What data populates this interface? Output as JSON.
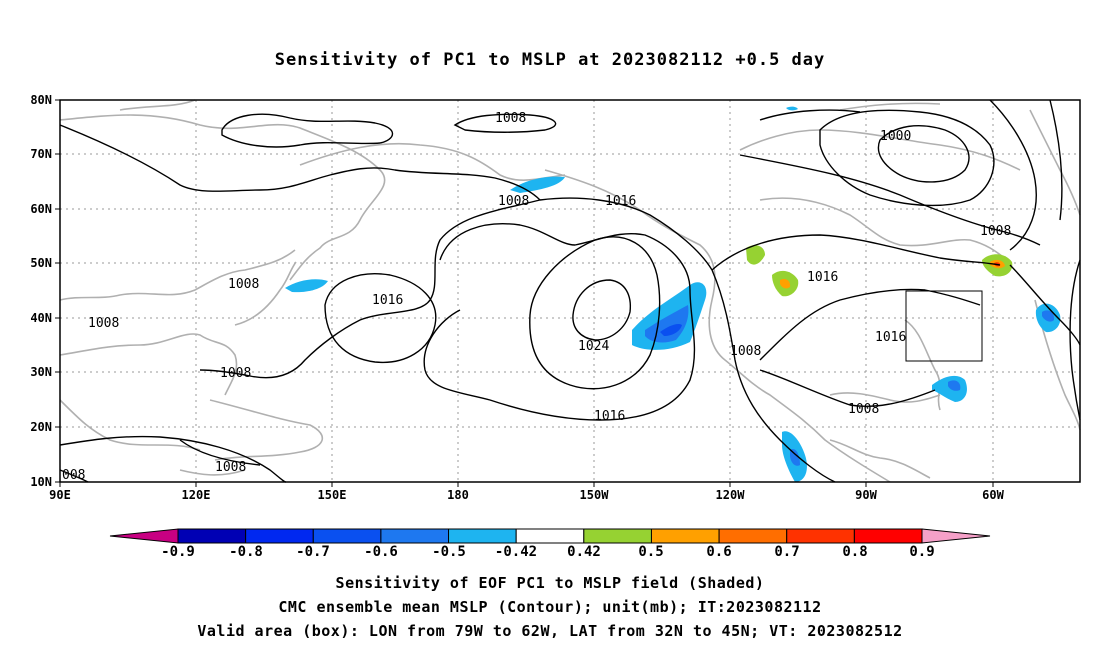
{
  "title": "Sensitivity of PC1 to MSLP at 2023082112 +0.5 day",
  "axes": {
    "lat_labels": [
      "80N",
      "70N",
      "60N",
      "50N",
      "40N",
      "30N",
      "20N",
      "10N"
    ],
    "lon_labels": [
      "90E",
      "120E",
      "150E",
      "180",
      "150W",
      "120W",
      "90W",
      "60W"
    ]
  },
  "contour_labels": [
    {
      "id": "c1008-a",
      "text": "1008"
    },
    {
      "id": "c1008-b",
      "text": "1008"
    },
    {
      "id": "c1016-a",
      "text": "1016"
    },
    {
      "id": "c1000",
      "text": "1000"
    },
    {
      "id": "c1008-c",
      "text": "1008"
    },
    {
      "id": "c1016-b",
      "text": "1016"
    },
    {
      "id": "c1008-d",
      "text": "1008"
    },
    {
      "id": "c1016-c",
      "text": "1016"
    },
    {
      "id": "c1024",
      "text": "1024"
    },
    {
      "id": "c1008-e",
      "text": "1008"
    },
    {
      "id": "c1016-d",
      "text": "1016"
    },
    {
      "id": "c1008-f",
      "text": "1008"
    },
    {
      "id": "c1008-g",
      "text": "1008"
    },
    {
      "id": "c1016-e",
      "text": "1016"
    },
    {
      "id": "c1008-h",
      "text": "1008"
    },
    {
      "id": "c1008-i",
      "text": "1008"
    },
    {
      "id": "c008",
      "text": "008"
    }
  ],
  "colorbar": {
    "labels": [
      "-0.9",
      "-0.8",
      "-0.7",
      "-0.6",
      "-0.5",
      "-0.42",
      "0.42",
      "0.5",
      "0.6",
      "0.7",
      "0.8",
      "0.9"
    ],
    "colors": [
      "#c80082",
      "#0000b4",
      "#0028f0",
      "#0a50f0",
      "#1e78f0",
      "#1eb4f0",
      "#ffffff",
      "#96d232",
      "#ffa000",
      "#ff6e00",
      "#ff3200",
      "#ff0000",
      "#f5a0c8"
    ]
  },
  "captions": {
    "line1": "Sensitivity of EOF PC1 to MSLP field (Shaded)",
    "line2": "CMC ensemble mean MSLP (Contour); unit(mb); IT:2023082112",
    "line3": "Valid area (box): LON from 79W to 62W, LAT from 32N to 45N; VT: 2023082512"
  }
}
